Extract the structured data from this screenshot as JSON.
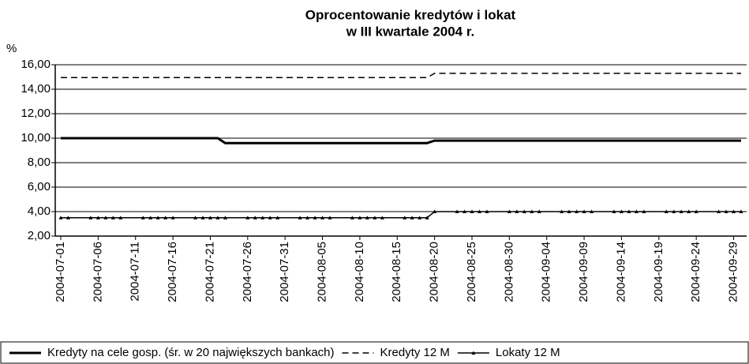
{
  "chart_data": {
    "type": "line",
    "title": [
      "Oprocentowanie kredytów i lokat",
      "w III kwartale 2004 r."
    ],
    "y_label": "%",
    "x": [
      "2004-07-01",
      "2004-07-02",
      "2004-07-05",
      "2004-07-06",
      "2004-07-07",
      "2004-07-08",
      "2004-07-09",
      "2004-07-12",
      "2004-07-13",
      "2004-07-14",
      "2004-07-15",
      "2004-07-16",
      "2004-07-19",
      "2004-07-20",
      "2004-07-21",
      "2004-07-22",
      "2004-07-23",
      "2004-07-26",
      "2004-07-27",
      "2004-07-28",
      "2004-07-29",
      "2004-07-30",
      "2004-08-02",
      "2004-08-03",
      "2004-08-04",
      "2004-08-05",
      "2004-08-06",
      "2004-08-09",
      "2004-08-10",
      "2004-08-11",
      "2004-08-12",
      "2004-08-13",
      "2004-08-16",
      "2004-08-17",
      "2004-08-18",
      "2004-08-19",
      "2004-08-20",
      "2004-08-23",
      "2004-08-24",
      "2004-08-25",
      "2004-08-26",
      "2004-08-27",
      "2004-08-30",
      "2004-08-31",
      "2004-09-01",
      "2004-09-02",
      "2004-09-03",
      "2004-09-06",
      "2004-09-07",
      "2004-09-08",
      "2004-09-09",
      "2004-09-10",
      "2004-09-13",
      "2004-09-14",
      "2004-09-15",
      "2004-09-16",
      "2004-09-17",
      "2004-09-20",
      "2004-09-21",
      "2004-09-22",
      "2004-09-23",
      "2004-09-24",
      "2004-09-27",
      "2004-09-28",
      "2004-09-29",
      "2004-09-30"
    ],
    "series": [
      {
        "name": "Kredyty na cele gosp. (śr. w 20 największych bankach)",
        "color": "#000000",
        "style": "solid",
        "marker": false,
        "values": [
          10,
          10,
          10,
          10,
          10,
          10,
          10,
          10,
          10,
          10,
          10,
          10,
          10,
          10,
          10,
          10,
          9.6,
          9.6,
          9.6,
          9.6,
          9.6,
          9.6,
          9.6,
          9.6,
          9.6,
          9.6,
          9.6,
          9.6,
          9.6,
          9.6,
          9.6,
          9.6,
          9.6,
          9.6,
          9.6,
          9.6,
          9.8,
          9.8,
          9.8,
          9.8,
          9.8,
          9.8,
          9.8,
          9.8,
          9.8,
          9.8,
          9.8,
          9.8,
          9.8,
          9.8,
          9.8,
          9.8,
          9.8,
          9.8,
          9.8,
          9.8,
          9.8,
          9.8,
          9.8,
          9.8,
          9.8,
          9.8,
          9.8,
          9.8,
          9.8,
          9.8
        ]
      },
      {
        "name": "Kredyty 12 M",
        "color": "#000000",
        "style": "dashed",
        "marker": false,
        "values": [
          14.95,
          14.95,
          14.95,
          14.95,
          14.95,
          14.95,
          14.95,
          14.95,
          14.95,
          14.95,
          14.95,
          14.95,
          14.95,
          14.95,
          14.95,
          14.95,
          14.95,
          14.95,
          14.95,
          14.95,
          14.95,
          14.95,
          14.95,
          14.95,
          14.95,
          14.95,
          14.95,
          14.95,
          14.95,
          14.95,
          14.95,
          14.95,
          14.95,
          14.95,
          14.95,
          14.95,
          15.3,
          15.3,
          15.3,
          15.3,
          15.3,
          15.3,
          15.3,
          15.3,
          15.3,
          15.3,
          15.3,
          15.3,
          15.3,
          15.3,
          15.3,
          15.3,
          15.3,
          15.3,
          15.3,
          15.3,
          15.3,
          15.3,
          15.3,
          15.3,
          15.3,
          15.3,
          15.3,
          15.3,
          15.3,
          15.3
        ]
      },
      {
        "name": "Lokaty 12 M",
        "color": "#000000",
        "style": "thin",
        "marker": true,
        "values": [
          3.5,
          3.5,
          3.5,
          3.5,
          3.5,
          3.5,
          3.5,
          3.5,
          3.5,
          3.5,
          3.5,
          3.5,
          3.5,
          3.5,
          3.5,
          3.5,
          3.5,
          3.5,
          3.5,
          3.5,
          3.5,
          3.5,
          3.5,
          3.5,
          3.5,
          3.5,
          3.5,
          3.5,
          3.5,
          3.5,
          3.5,
          3.5,
          3.5,
          3.5,
          3.5,
          3.5,
          4,
          4,
          4,
          4,
          4,
          4,
          4,
          4,
          4,
          4,
          4,
          4,
          4,
          4,
          4,
          4,
          4,
          4,
          4,
          4,
          4,
          4,
          4,
          4,
          4,
          4,
          4,
          4,
          4,
          4
        ]
      }
    ],
    "xlim": [
      "2004-07-01",
      "2004-09-30"
    ],
    "xticks": [
      "2004-07-01",
      "2004-07-06",
      "2004-07-11",
      "2004-07-16",
      "2004-07-21",
      "2004-07-26",
      "2004-07-31",
      "2004-08-05",
      "2004-08-10",
      "2004-08-15",
      "2004-08-20",
      "2004-08-25",
      "2004-08-30",
      "2004-09-04",
      "2004-09-09",
      "2004-09-14",
      "2004-09-19",
      "2004-09-24",
      "2004-09-29"
    ],
    "ylim": [
      2,
      16
    ],
    "yticks": [
      {
        "value": 2,
        "label": "2,00"
      },
      {
        "value": 4,
        "label": "4,00"
      },
      {
        "value": 6,
        "label": "6,00"
      },
      {
        "value": 8,
        "label": "8,00"
      },
      {
        "value": 10,
        "label": "10,00"
      },
      {
        "value": 12,
        "label": "12,00"
      },
      {
        "value": 14,
        "label": "14,00"
      },
      {
        "value": 16,
        "label": "16,00"
      }
    ],
    "grid": true,
    "legend": "bottom"
  }
}
